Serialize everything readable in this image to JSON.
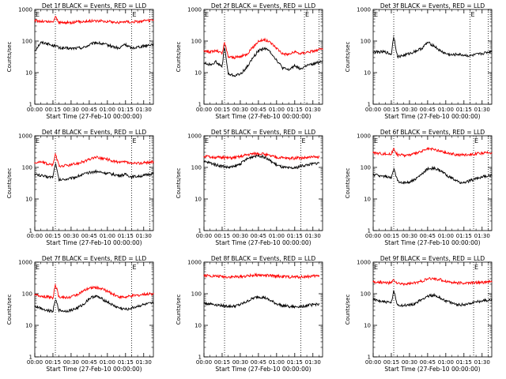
{
  "colors": {
    "events": "#000000",
    "lld": "#ff0000",
    "axis": "#000000",
    "background": "#ffffff"
  },
  "chart_data": [
    {
      "type": "line",
      "detector": 1,
      "title": "Det 1f BLACK = Events, RED = LLD",
      "xlabel": "Start Time (27-Feb-10 00:00:00)",
      "ylabel": "Counts/sec",
      "x_tick_labels": [
        "00:00",
        "00:15",
        "00:30",
        "00:45",
        "01:00",
        "01:15",
        "01:30"
      ],
      "y_tick_labels": [
        "1",
        "10",
        "100",
        "1000"
      ],
      "xlim_min": [
        0,
        98
      ],
      "ylim": [
        1,
        1000
      ],
      "yscale": "log",
      "markers": [
        {
          "label": "E",
          "x_min": 0
        },
        {
          "label": "E",
          "x_min": 80
        }
      ],
      "vlines_min": [
        17,
        80,
        95
      ],
      "x_min": [
        0,
        5,
        10,
        15,
        17,
        20,
        30,
        40,
        50,
        60,
        70,
        74,
        80,
        90,
        98
      ],
      "series": [
        {
          "name": "Events",
          "values": [
            50,
            90,
            85,
            70,
            75,
            60,
            58,
            62,
            90,
            75,
            58,
            80,
            60,
            70,
            80
          ]
        },
        {
          "name": "LLD",
          "values": [
            450,
            420,
            410,
            400,
            600,
            380,
            390,
            420,
            440,
            420,
            380,
            420,
            400,
            430,
            450
          ]
        }
      ]
    },
    {
      "type": "line",
      "detector": 2,
      "title": "Det 2f BLACK = Events, RED = LLD",
      "xlabel": "Start Time (27-Feb-10 00:00:00)",
      "ylabel": "Counts/sec",
      "x_tick_labels": [
        "00:00",
        "00:15",
        "00:30",
        "00:45",
        "01:00",
        "01:15",
        "01:30"
      ],
      "y_tick_labels": [
        "1",
        "10",
        "100",
        "1000"
      ],
      "xlim_min": [
        0,
        98
      ],
      "ylim": [
        1,
        1000
      ],
      "yscale": "log",
      "markers": [
        {
          "label": "E",
          "x_min": 0
        },
        {
          "label": "E",
          "x_min": 83
        }
      ],
      "vlines_min": [
        17,
        83,
        95
      ],
      "x_min": [
        0,
        5,
        10,
        15,
        17,
        20,
        25,
        30,
        35,
        40,
        45,
        50,
        55,
        60,
        65,
        70,
        75,
        80,
        85,
        90,
        98
      ],
      "series": [
        {
          "name": "Events",
          "values": [
            20,
            18,
            22,
            15,
            70,
            9,
            8,
            9,
            14,
            28,
            50,
            60,
            45,
            25,
            14,
            12,
            17,
            13,
            17,
            18,
            24
          ]
        },
        {
          "name": "LLD",
          "values": [
            50,
            45,
            50,
            40,
            90,
            32,
            30,
            32,
            38,
            60,
            100,
            110,
            90,
            60,
            40,
            38,
            45,
            40,
            45,
            48,
            55
          ]
        }
      ]
    },
    {
      "type": "line",
      "detector": 3,
      "title": "Det 3f BLACK = Events, RED = LLD",
      "xlabel": "Start Time (27-Feb-10 00:00:00)",
      "ylabel": "Counts/sec",
      "x_tick_labels": [
        "00:00",
        "00:15",
        "00:30",
        "00:45",
        "01:00",
        "01:15",
        "01:30"
      ],
      "y_tick_labels": [
        "1",
        "10",
        "100",
        "1000"
      ],
      "xlim_min": [
        0,
        98
      ],
      "ylim": [
        1,
        1000
      ],
      "yscale": "log",
      "markers": [
        {
          "label": "E",
          "x_min": 0
        },
        {
          "label": "E",
          "x_min": 80
        }
      ],
      "vlines_min": [
        17,
        80,
        95
      ],
      "x_min": [
        0,
        10,
        15,
        17,
        20,
        25,
        30,
        35,
        40,
        45,
        50,
        55,
        60,
        65,
        70,
        80,
        90,
        98
      ],
      "series": [
        {
          "name": "Events",
          "values": [
            45,
            45,
            38,
            150,
            32,
            35,
            40,
            48,
            58,
            90,
            72,
            50,
            40,
            36,
            38,
            34,
            40,
            48
          ]
        }
      ]
    },
    {
      "type": "line",
      "detector": 4,
      "title": "Det 4f BLACK = Events, RED = LLD",
      "xlabel": "Start Time (27-Feb-10 00:00:00)",
      "ylabel": "Counts/sec",
      "x_tick_labels": [
        "00:00",
        "00:15",
        "00:30",
        "00:45",
        "01:00",
        "01:15",
        "01:30"
      ],
      "y_tick_labels": [
        "1",
        "10",
        "100",
        "1000"
      ],
      "xlim_min": [
        0,
        98
      ],
      "ylim": [
        1,
        1000
      ],
      "yscale": "log",
      "markers": [
        {
          "label": "E",
          "x_min": 0
        },
        {
          "label": "E",
          "x_min": 80
        }
      ],
      "vlines_min": [
        17,
        80,
        95
      ],
      "x_min": [
        0,
        5,
        10,
        15,
        17,
        20,
        30,
        40,
        50,
        60,
        70,
        75,
        80,
        90,
        98
      ],
      "series": [
        {
          "name": "Events",
          "values": [
            60,
            55,
            50,
            50,
            140,
            40,
            45,
            60,
            75,
            65,
            55,
            60,
            50,
            55,
            65
          ]
        },
        {
          "name": "LLD",
          "values": [
            140,
            150,
            130,
            120,
            270,
            110,
            120,
            150,
            210,
            180,
            140,
            150,
            130,
            140,
            150
          ]
        }
      ]
    },
    {
      "type": "line",
      "detector": 5,
      "title": "Det 5f BLACK = Events, RED = LLD",
      "xlabel": "Start Time (27-Feb-10 00:00:00)",
      "ylabel": "Counts/sec",
      "x_tick_labels": [
        "00:00",
        "00:15",
        "00:30",
        "00:45",
        "01:00",
        "01:15",
        "01:30"
      ],
      "y_tick_labels": [
        "1",
        "10",
        "100",
        "1000"
      ],
      "xlim_min": [
        0,
        98
      ],
      "ylim": [
        1,
        1000
      ],
      "yscale": "log",
      "markers": [
        {
          "label": "E",
          "x_min": 0
        },
        {
          "label": "E",
          "x_min": 80
        }
      ],
      "vlines_min": [
        17,
        80
      ],
      "x_min": [
        0,
        5,
        10,
        15,
        20,
        25,
        30,
        35,
        40,
        45,
        50,
        55,
        60,
        65,
        70,
        75,
        80,
        85,
        90,
        95
      ],
      "series": [
        {
          "name": "Events",
          "values": [
            150,
            140,
            120,
            110,
            100,
            105,
            130,
            180,
            220,
            240,
            210,
            160,
            120,
            100,
            95,
            95,
            110,
            120,
            130,
            140
          ]
        },
        {
          "name": "LLD",
          "values": [
            220,
            215,
            210,
            205,
            200,
            205,
            220,
            250,
            270,
            280,
            260,
            230,
            210,
            200,
            195,
            195,
            200,
            205,
            210,
            215
          ]
        }
      ]
    },
    {
      "type": "line",
      "detector": 6,
      "title": "Det 6f BLACK = Events, RED = LLD",
      "xlabel": "Start Time (27-Feb-10 00:00:00)",
      "ylabel": "Counts/sec",
      "x_tick_labels": [
        "00:00",
        "00:15",
        "00:30",
        "00:45",
        "01:00",
        "01:15",
        "01:30"
      ],
      "y_tick_labels": [
        "1",
        "10",
        "100",
        "1000"
      ],
      "xlim_min": [
        0,
        98
      ],
      "ylim": [
        1,
        1000
      ],
      "yscale": "log",
      "markers": [
        {
          "label": "E",
          "x_min": 0
        },
        {
          "label": "E",
          "x_min": 83
        }
      ],
      "vlines_min": [
        17,
        83,
        95
      ],
      "x_min": [
        0,
        5,
        10,
        15,
        17,
        20,
        25,
        30,
        35,
        40,
        45,
        50,
        55,
        60,
        65,
        70,
        75,
        80,
        85,
        90,
        98
      ],
      "series": [
        {
          "name": "Events",
          "values": [
            60,
            55,
            52,
            45,
            90,
            38,
            32,
            35,
            42,
            60,
            90,
            95,
            80,
            60,
            45,
            35,
            32,
            38,
            45,
            50,
            55
          ]
        },
        {
          "name": "LLD",
          "values": [
            290,
            280,
            270,
            260,
            400,
            250,
            240,
            250,
            270,
            320,
            380,
            370,
            330,
            290,
            270,
            250,
            250,
            260,
            270,
            280,
            290
          ]
        }
      ]
    },
    {
      "type": "line",
      "detector": 7,
      "title": "Det 7f BLACK = Events, RED = LLD",
      "xlabel": "Start Time (27-Feb-10 00:00:00)",
      "ylabel": "Counts/sec",
      "x_tick_labels": [
        "00:00",
        "00:15",
        "00:30",
        "00:45",
        "01:00",
        "01:15",
        "01:30"
      ],
      "y_tick_labels": [
        "1",
        "10",
        "100",
        "1000"
      ],
      "xlim_min": [
        0,
        98
      ],
      "ylim": [
        1,
        1000
      ],
      "yscale": "log",
      "markers": [
        {
          "label": "E",
          "x_min": 0
        },
        {
          "label": "E",
          "x_min": 80
        }
      ],
      "vlines_min": [
        17,
        80
      ],
      "x_min": [
        0,
        5,
        10,
        15,
        17,
        20,
        25,
        30,
        35,
        40,
        45,
        50,
        55,
        60,
        65,
        70,
        75,
        80,
        85,
        90,
        98
      ],
      "series": [
        {
          "name": "Events",
          "values": [
            40,
            35,
            30,
            28,
            70,
            30,
            28,
            30,
            35,
            45,
            70,
            85,
            70,
            55,
            42,
            35,
            32,
            35,
            40,
            45,
            50
          ]
        },
        {
          "name": "LLD",
          "values": [
            90,
            85,
            80,
            75,
            200,
            80,
            75,
            80,
            95,
            120,
            150,
            160,
            145,
            120,
            95,
            80,
            78,
            85,
            90,
            95,
            100
          ]
        }
      ]
    },
    {
      "type": "line",
      "detector": 8,
      "title": "Det 8f BLACK = Events, RED = LLD",
      "xlabel": "Start Time (27-Feb-10 00:00:00)",
      "ylabel": "Counts/sec",
      "x_tick_labels": [
        "00:00",
        "00:15",
        "00:30",
        "00:45",
        "01:00",
        "01:15",
        "01:30"
      ],
      "y_tick_labels": [
        "1",
        "10",
        "100",
        "1000"
      ],
      "xlim_min": [
        0,
        98
      ],
      "ylim": [
        1,
        1000
      ],
      "yscale": "log",
      "markers": [],
      "vlines_min": [
        17,
        80
      ],
      "x_min": [
        0,
        5,
        10,
        15,
        20,
        25,
        30,
        35,
        40,
        45,
        50,
        55,
        60,
        65,
        70,
        75,
        80,
        85,
        90,
        95
      ],
      "series": [
        {
          "name": "Events",
          "values": [
            50,
            48,
            45,
            42,
            40,
            40,
            45,
            55,
            70,
            80,
            75,
            60,
            48,
            42,
            40,
            38,
            40,
            42,
            45,
            48
          ]
        },
        {
          "name": "LLD",
          "values": [
            380,
            370,
            360,
            350,
            340,
            340,
            350,
            360,
            380,
            390,
            380,
            370,
            360,
            350,
            340,
            340,
            340,
            350,
            360,
            370
          ]
        }
      ]
    },
    {
      "type": "line",
      "detector": 9,
      "title": "Det 9f BLACK = Events, RED = LLD",
      "xlabel": "Start Time (27-Feb-10 00:00:00)",
      "ylabel": "Counts/sec",
      "x_tick_labels": [
        "00:00",
        "00:15",
        "00:30",
        "00:45",
        "01:00",
        "01:15",
        "01:30"
      ],
      "y_tick_labels": [
        "1",
        "10",
        "100",
        "1000"
      ],
      "xlim_min": [
        0,
        98
      ],
      "ylim": [
        1,
        1000
      ],
      "yscale": "log",
      "markers": [
        {
          "label": "E",
          "x_min": 0
        },
        {
          "label": "E",
          "x_min": 83
        }
      ],
      "vlines_min": [
        17,
        83,
        95
      ],
      "x_min": [
        0,
        5,
        10,
        15,
        17,
        20,
        25,
        30,
        35,
        40,
        45,
        50,
        55,
        60,
        65,
        70,
        75,
        80,
        85,
        90,
        98
      ],
      "series": [
        {
          "name": "Events",
          "values": [
            65,
            60,
            55,
            52,
            120,
            45,
            42,
            44,
            50,
            65,
            85,
            90,
            75,
            60,
            50,
            45,
            45,
            50,
            55,
            60,
            65
          ]
        },
        {
          "name": "LLD",
          "values": [
            240,
            230,
            225,
            220,
            280,
            210,
            205,
            210,
            220,
            250,
            290,
            300,
            280,
            250,
            230,
            220,
            215,
            220,
            225,
            230,
            240
          ]
        }
      ]
    }
  ]
}
